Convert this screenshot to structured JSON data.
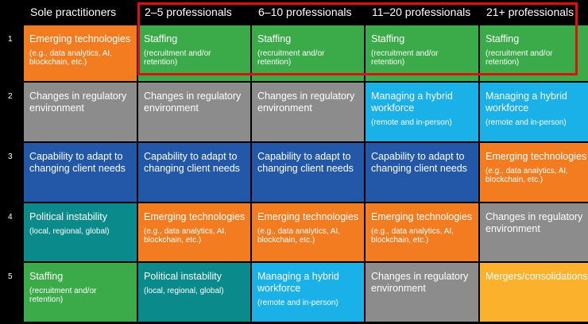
{
  "headers": [
    "",
    "Sole practitioners",
    "2–5 professionals",
    "6–10 professionals",
    "11–20 professionals",
    "21+ professionals"
  ],
  "rows": [
    {
      "rank": "1",
      "cells": [
        {
          "title": "Emerging technologies",
          "sub": "(e.g., data analytics, AI, blockchain, etc.)",
          "color": "orange"
        },
        {
          "title": "Staffing",
          "sub": "(recruitment and/or retention)",
          "color": "green"
        },
        {
          "title": "Staffing",
          "sub": "(recruitment and/or retention)",
          "color": "green"
        },
        {
          "title": "Staffing",
          "sub": "(recruitment and/or retention)",
          "color": "green"
        },
        {
          "title": "Staffing",
          "sub": "(recruitment and/or retention)",
          "color": "green"
        }
      ]
    },
    {
      "rank": "2",
      "cells": [
        {
          "title": "Changes in regulatory environment",
          "sub": "",
          "color": "gray"
        },
        {
          "title": "Changes in regulatory environment",
          "sub": "",
          "color": "gray"
        },
        {
          "title": "Changes in regulatory environment",
          "sub": "",
          "color": "gray"
        },
        {
          "title": "Managing a hybrid workforce",
          "sub": "(remote and in-person)",
          "color": "cyan"
        },
        {
          "title": "Managing a hybrid workforce",
          "sub": "(remote and in-person)",
          "color": "cyan"
        }
      ]
    },
    {
      "rank": "3",
      "cells": [
        {
          "title": "Capability to adapt to changing client needs",
          "sub": "",
          "color": "blue"
        },
        {
          "title": "Capability to adapt to changing client needs",
          "sub": "",
          "color": "blue"
        },
        {
          "title": "Capability to adapt to changing client needs",
          "sub": "",
          "color": "blue"
        },
        {
          "title": "Capability to adapt to changing client needs",
          "sub": "",
          "color": "blue"
        },
        {
          "title": "Emerging technologies",
          "sub": "(e.g., data analytics, AI, blockchain, etc.)",
          "color": "orange"
        }
      ]
    },
    {
      "rank": "4",
      "cells": [
        {
          "title": "Political instability",
          "sub": "(local, regional, global)",
          "color": "teal"
        },
        {
          "title": "Emerging technologies",
          "sub": "(e.g., data analytics, AI, blockchain, etc.)",
          "color": "orange"
        },
        {
          "title": "Emerging technologies",
          "sub": "(e.g., data analytics, AI, blockchain, etc.)",
          "color": "orange"
        },
        {
          "title": "Emerging technologies",
          "sub": "(e.g., data analytics, AI, blockchain, etc.)",
          "color": "orange"
        },
        {
          "title": "Changes in regulatory environment",
          "sub": "",
          "color": "gray"
        }
      ]
    },
    {
      "rank": "5",
      "cells": [
        {
          "title": "Staffing",
          "sub": "(recruitment and/or retention)",
          "color": "green"
        },
        {
          "title": "Political instability",
          "sub": "(local, regional, global)",
          "color": "teal"
        },
        {
          "title": "Managing a hybrid workforce",
          "sub": "(remote and in-person)",
          "color": "cyan"
        },
        {
          "title": "Changes in regulatory environment",
          "sub": "",
          "color": "gray"
        },
        {
          "title": "Mergers/consolidations",
          "sub": "",
          "color": "yellow"
        }
      ]
    }
  ],
  "colors": {
    "green": "#3bab4a",
    "orange": "#f47c20",
    "gray": "#8c8c8c",
    "cyan": "#1ab0e8",
    "blue": "#2358a8",
    "teal": "#0a8a8a",
    "yellow": "#fbb12b",
    "highlight": "#e01010"
  }
}
